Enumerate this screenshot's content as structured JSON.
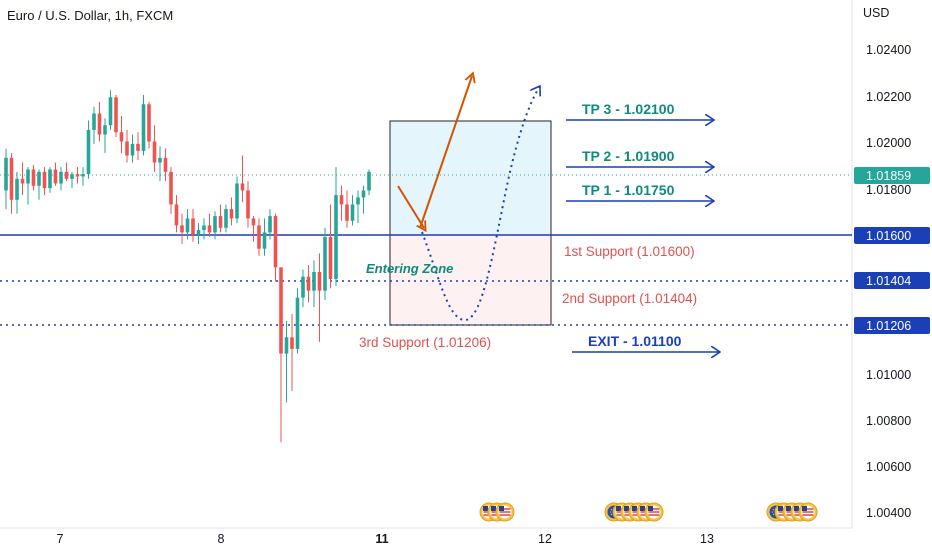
{
  "header": {
    "title": "Euro / U.S. Dollar, 1h, FXCM"
  },
  "price_axis": {
    "currency": "USD",
    "ticks": [
      "1.02400",
      "1.02200",
      "1.02000",
      "1.01800",
      "1.01000",
      "1.00800",
      "1.00600",
      "1.00400"
    ],
    "tick_values": [
      1.024,
      1.022,
      1.02,
      1.018,
      1.01,
      1.008,
      1.006,
      1.004
    ],
    "badges": [
      {
        "label": "1.01859",
        "value": 1.01859,
        "color": "#26a69a"
      },
      {
        "label": "1.01600",
        "value": 1.016,
        "color": "#1a3fb6"
      },
      {
        "label": "1.01404",
        "value": 1.01404,
        "color": "#1a3fb6"
      },
      {
        "label": "1.01206",
        "value": 1.01206,
        "color": "#1a3fb6"
      }
    ]
  },
  "time_axis": {
    "labels": [
      {
        "text": "7",
        "bold": false
      },
      {
        "text": "8",
        "bold": false
      },
      {
        "text": "11",
        "bold": true
      },
      {
        "text": "12",
        "bold": false
      },
      {
        "text": "13",
        "bold": false
      }
    ]
  },
  "annotations": {
    "entering_zone": "Entering Zone",
    "supports": [
      {
        "label": "1st Support (1.01600)",
        "value": 1.016
      },
      {
        "label": "2nd Support (1.01404)",
        "value": 1.01404
      },
      {
        "label": "3rd Support (1.01206)",
        "value": 1.01206
      }
    ],
    "targets": [
      {
        "label": "TP 3 - 1.02100",
        "value": 1.021
      },
      {
        "label": "TP 2 - 1.01900",
        "value": 1.019
      },
      {
        "label": "TP 1 - 1.01750",
        "value": 1.0175
      }
    ],
    "exit": {
      "label": "EXIT - 1.01100",
      "value": 1.011
    }
  },
  "events": {
    "day11": [
      "us",
      "us",
      "us"
    ],
    "day12": [
      "eu",
      "us",
      "us",
      "us",
      "us",
      "us"
    ],
    "day13": [
      "eu",
      "us",
      "us",
      "us",
      "us"
    ]
  },
  "colors": {
    "up": "#26a69a",
    "down": "#ef5350",
    "level_line": "#1a3fb6",
    "target_text": "#0f8a7e",
    "support_text": "#e25050",
    "arrow_orange": "#d35400",
    "entry_top_fill": "#e4f5fb",
    "entry_bottom_fill": "#fdf1f1"
  },
  "chart_data": {
    "type": "candlestick",
    "title": "Euro / U.S. Dollar, 1h, FXCM",
    "ylabel": "USD",
    "ylim": [
      1.0034,
      1.0258
    ],
    "last_price": 1.01859,
    "candles": [
      [
        1.0178,
        1.0196,
        1.017,
        1.0192
      ],
      [
        1.0192,
        1.0194,
        1.0168,
        1.0174
      ],
      [
        1.0174,
        1.0186,
        1.0168,
        1.0183
      ],
      [
        1.0183,
        1.019,
        1.0176,
        1.0181
      ],
      [
        1.0181,
        1.0188,
        1.0172,
        1.0187
      ],
      [
        1.0187,
        1.0189,
        1.0178,
        1.018
      ],
      [
        1.018,
        1.0187,
        1.0174,
        1.0186
      ],
      [
        1.0186,
        1.0188,
        1.0176,
        1.0179
      ],
      [
        1.0179,
        1.0188,
        1.0177,
        1.0187
      ],
      [
        1.0187,
        1.019,
        1.018,
        1.0181
      ],
      [
        1.0181,
        1.0188,
        1.0178,
        1.0186
      ],
      [
        1.0186,
        1.019,
        1.0182,
        1.0183
      ],
      [
        1.0183,
        1.0186,
        1.0179,
        1.0185
      ],
      [
        1.0185,
        1.0188,
        1.0181,
        1.0184
      ],
      [
        1.0184,
        1.0188,
        1.018,
        1.0185
      ],
      [
        1.0185,
        1.0208,
        1.0183,
        1.0204
      ],
      [
        1.0204,
        1.0214,
        1.0198,
        1.0211
      ],
      [
        1.0211,
        1.0216,
        1.0199,
        1.0202
      ],
      [
        1.0202,
        1.0209,
        1.0194,
        1.0206
      ],
      [
        1.0206,
        1.0221,
        1.0204,
        1.0218
      ],
      [
        1.0218,
        1.0219,
        1.0201,
        1.0203
      ],
      [
        1.0203,
        1.021,
        1.0194,
        1.0199
      ],
      [
        1.0199,
        1.0204,
        1.019,
        1.0193
      ],
      [
        1.0193,
        1.0202,
        1.019,
        1.0198
      ],
      [
        1.0198,
        1.0203,
        1.0191,
        1.0195
      ],
      [
        1.0195,
        1.0219,
        1.0193,
        1.0215
      ],
      [
        1.0215,
        1.0216,
        1.0196,
        1.0199
      ],
      [
        1.0199,
        1.0206,
        1.0186,
        1.019
      ],
      [
        1.019,
        1.0197,
        1.0182,
        1.0192
      ],
      [
        1.0192,
        1.0196,
        1.0182,
        1.0186
      ],
      [
        1.0186,
        1.0188,
        1.0168,
        1.0172
      ],
      [
        1.0172,
        1.0176,
        1.016,
        1.0163
      ],
      [
        1.0163,
        1.0168,
        1.0155,
        1.016
      ],
      [
        1.016,
        1.017,
        1.0157,
        1.0166
      ],
      [
        1.0166,
        1.017,
        1.0156,
        1.0159
      ],
      [
        1.0159,
        1.0164,
        1.0155,
        1.0161
      ],
      [
        1.0161,
        1.0166,
        1.0157,
        1.0163
      ],
      [
        1.0163,
        1.0168,
        1.0158,
        1.016
      ],
      [
        1.016,
        1.0169,
        1.0157,
        1.0167
      ],
      [
        1.0167,
        1.0172,
        1.016,
        1.0162
      ],
      [
        1.0162,
        1.0172,
        1.016,
        1.017
      ],
      [
        1.017,
        1.0175,
        1.0163,
        1.0166
      ],
      [
        1.0166,
        1.0184,
        1.0164,
        1.0181
      ],
      [
        1.0181,
        1.0193,
        1.0173,
        1.0178
      ],
      [
        1.0178,
        1.0182,
        1.0162,
        1.0166
      ],
      [
        1.0166,
        1.0167,
        1.0156,
        1.0163
      ],
      [
        1.0163,
        1.0166,
        1.015,
        1.0153
      ],
      [
        1.0153,
        1.0166,
        1.015,
        1.016
      ],
      [
        1.016,
        1.017,
        1.0157,
        1.0167
      ],
      [
        1.0167,
        1.0168,
        1.0139,
        1.0145
      ],
      [
        1.0145,
        1.0145,
        1.007,
        1.0108
      ],
      [
        1.0108,
        1.0122,
        1.0087,
        1.0115
      ],
      [
        1.0115,
        1.0125,
        1.0092,
        1.011
      ],
      [
        1.011,
        1.0136,
        1.0108,
        1.0132
      ],
      [
        1.0132,
        1.0144,
        1.0128,
        1.0141
      ],
      [
        1.0141,
        1.0146,
        1.013,
        1.0135
      ],
      [
        1.0135,
        1.0148,
        1.0128,
        1.0143
      ],
      [
        1.0143,
        1.0151,
        1.0113,
        1.0135
      ],
      [
        1.0135,
        1.0162,
        1.0131,
        1.0158
      ],
      [
        1.0158,
        1.0172,
        1.0136,
        1.014
      ],
      [
        1.014,
        1.0188,
        1.0137,
        1.0176
      ],
      [
        1.0176,
        1.018,
        1.0165,
        1.0172
      ],
      [
        1.0172,
        1.0178,
        1.0162,
        1.0165
      ],
      [
        1.0165,
        1.0176,
        1.0163,
        1.0172
      ],
      [
        1.0172,
        1.0178,
        1.0164,
        1.0175
      ],
      [
        1.0175,
        1.018,
        1.0168,
        1.0178
      ],
      [
        1.0178,
        1.0187,
        1.0176,
        1.0186
      ]
    ]
  }
}
